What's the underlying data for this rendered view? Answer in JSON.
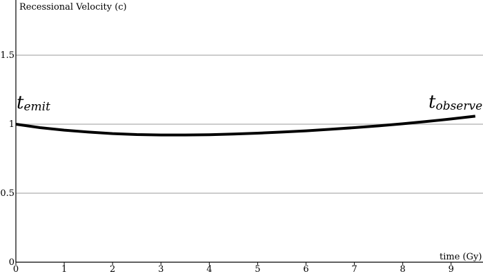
{
  "chart_data": {
    "type": "line",
    "title": "",
    "xlabel": "time (Gy)",
    "ylabel": "Recessional Velocity (c)",
    "xlim": [
      0,
      9.6
    ],
    "ylim": [
      0,
      1.5
    ],
    "x_ticks": [
      0,
      1,
      2,
      3,
      4,
      5,
      6,
      7,
      8,
      9
    ],
    "y_ticks": [
      0,
      0.5,
      1,
      1.5
    ],
    "x_tick_labels": [
      "0",
      "1",
      "2",
      "3",
      "4",
      "5",
      "6",
      "7",
      "8",
      "9"
    ],
    "y_tick_labels": [
      "0",
      "0.5",
      "1",
      "1.5"
    ],
    "grid": "horizontal",
    "line_color": "#000000",
    "grid_color": "#bbbbbb",
    "series": [
      {
        "x": [
          0,
          0.5,
          1,
          1.5,
          2,
          2.5,
          3,
          3.5,
          4,
          4.5,
          5,
          5.5,
          6,
          6.5,
          7,
          7.5,
          8,
          8.5,
          9,
          9.5
        ],
        "y": [
          1.0,
          0.975,
          0.957,
          0.943,
          0.932,
          0.925,
          0.922,
          0.922,
          0.924,
          0.929,
          0.935,
          0.943,
          0.952,
          0.963,
          0.975,
          0.988,
          1.003,
          1.02,
          1.038,
          1.058
        ]
      }
    ],
    "annotations": [
      {
        "main": "t",
        "sub": "emit"
      },
      {
        "main": "t",
        "sub": "observe"
      }
    ]
  }
}
